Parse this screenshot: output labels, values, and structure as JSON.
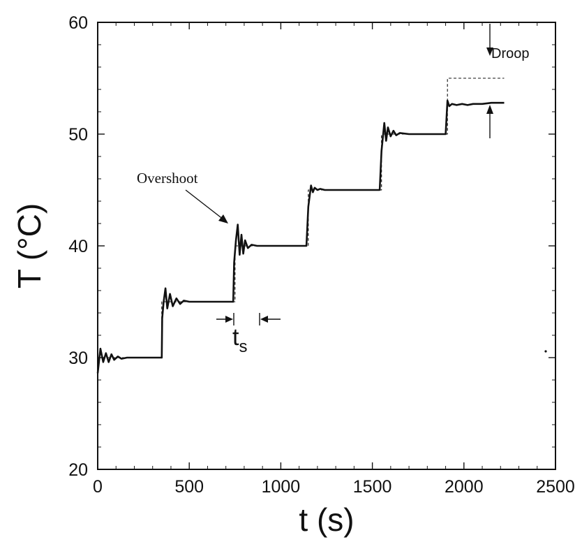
{
  "chart_data": {
    "type": "line",
    "title": "",
    "xlabel": "t (s)",
    "ylabel": "T (°C)",
    "xlim": [
      0,
      2500
    ],
    "ylim": [
      20,
      60
    ],
    "xticks": [
      0,
      500,
      1000,
      1500,
      2000,
      2500
    ],
    "yticks": [
      20,
      30,
      40,
      50,
      60
    ],
    "grid": false,
    "series": [
      {
        "style": "dashed-thin",
        "x": [
          0,
          350,
          350,
          750,
          750,
          1150,
          1150,
          1550,
          1550,
          1910,
          1910,
          2220
        ],
        "y": [
          30,
          30,
          35,
          35,
          40,
          40,
          45,
          45,
          50,
          50,
          55,
          55
        ]
      },
      {
        "style": "solid-thick",
        "x": [
          0,
          15,
          30,
          45,
          60,
          75,
          90,
          110,
          130,
          160,
          350,
          352,
          360,
          370,
          380,
          395,
          410,
          430,
          450,
          470,
          500,
          600,
          740,
          745,
          755,
          765,
          775,
          785,
          795,
          805,
          820,
          840,
          870,
          1140,
          1150,
          1165,
          1175,
          1185,
          1200,
          1215,
          1240,
          1300,
          1540,
          1550,
          1565,
          1575,
          1585,
          1600,
          1615,
          1630,
          1650,
          1700,
          1900,
          1910,
          1920,
          1935,
          1960,
          1990,
          2020,
          2050,
          2100,
          2150,
          2220
        ],
        "y": [
          28.6,
          30.8,
          29.6,
          30.4,
          29.6,
          30.3,
          29.8,
          30.1,
          29.9,
          30.0,
          30.0,
          33.5,
          35.0,
          36.2,
          34.4,
          35.7,
          34.6,
          35.3,
          34.8,
          35.1,
          35.0,
          35.0,
          35.0,
          38.5,
          40.5,
          41.9,
          39.2,
          41.0,
          39.3,
          40.5,
          39.8,
          40.1,
          40.0,
          40.0,
          43.5,
          45.4,
          44.8,
          45.2,
          45.0,
          45.1,
          45.0,
          45.0,
          45.0,
          48.5,
          51.0,
          49.4,
          50.6,
          49.8,
          50.3,
          49.9,
          50.1,
          50.0,
          50.0,
          53.0,
          52.5,
          52.7,
          52.6,
          52.7,
          52.6,
          52.7,
          52.7,
          52.8,
          52.8
        ]
      }
    ],
    "annotations": {
      "overshoot": "Overshoot",
      "settling_time": "t",
      "settling_time_subscript": "s",
      "droop": "Droop"
    }
  }
}
